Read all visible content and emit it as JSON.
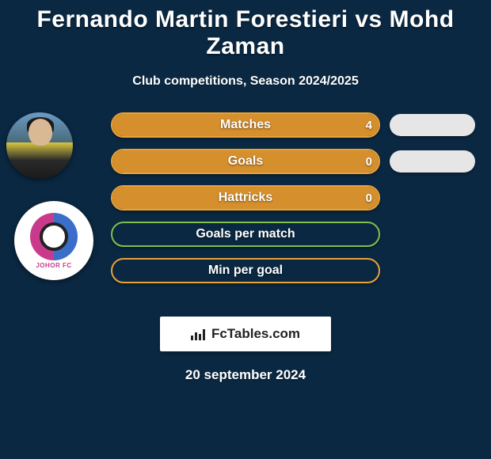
{
  "title": "Fernando Martin Forestieri vs Mohd Zaman",
  "subtitle": "Club competitions, Season 2024/2025",
  "date": "20 september 2024",
  "brand": "FcTables.com",
  "colors": {
    "background": "#0a2842",
    "pill_bg": "#e6e6e6",
    "text": "#ffffff"
  },
  "player2_badge_text": "JOHOR FC",
  "stats": [
    {
      "label": "Matches",
      "value_left": "4",
      "border": "#e8a23a",
      "fill": "#d58f2c",
      "fill_pct": 100
    },
    {
      "label": "Goals",
      "value_left": "0",
      "border": "#e8a23a",
      "fill": "#d58f2c",
      "fill_pct": 100
    },
    {
      "label": "Hattricks",
      "value_left": "0",
      "border": "#e8a23a",
      "fill": "#d58f2c",
      "fill_pct": 100
    },
    {
      "label": "Goals per match",
      "value_left": "",
      "border": "#7fbf4d",
      "fill": "transparent",
      "fill_pct": 0
    },
    {
      "label": "Min per goal",
      "value_left": "",
      "border": "#e8a23a",
      "fill": "transparent",
      "fill_pct": 0
    }
  ],
  "right_pills_count": 2
}
